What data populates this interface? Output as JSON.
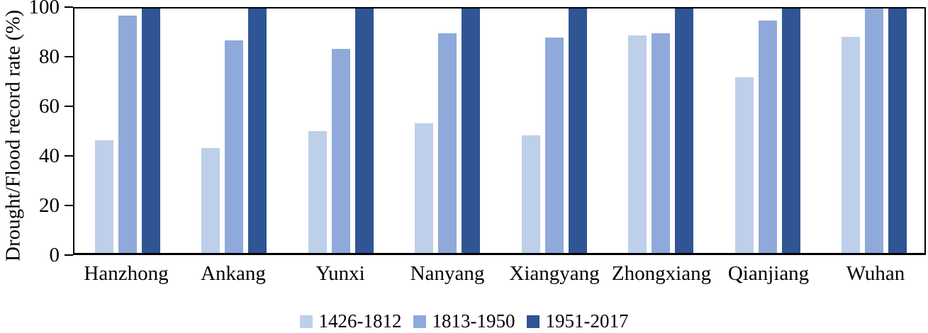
{
  "chart_data": {
    "type": "bar",
    "title": "",
    "xlabel": "",
    "ylabel": "Drought/Flood record rate (%)",
    "ylim": [
      0,
      100
    ],
    "yticks": [
      0,
      20,
      40,
      60,
      80,
      100
    ],
    "grid": false,
    "legend_position": "bottom",
    "categories": [
      "Hanzhong",
      "Ankang",
      "Yunxi",
      "Nanyang",
      "Xiangyang",
      "Zhongxiang",
      "Qianjiang",
      "Wuhan"
    ],
    "series": [
      {
        "name": "1426-1812",
        "color": "#BECFEA",
        "values": [
          46,
          43,
          50,
          53,
          48,
          89,
          72,
          88.5
        ]
      },
      {
        "name": "1813-1950",
        "color": "#8FA9DA",
        "values": [
          97,
          87,
          83.5,
          90,
          88,
          90,
          95,
          100
        ]
      },
      {
        "name": "1951-2017",
        "color": "#2F5594",
        "values": [
          100,
          100,
          100,
          100,
          100,
          100,
          100,
          100
        ]
      }
    ]
  }
}
